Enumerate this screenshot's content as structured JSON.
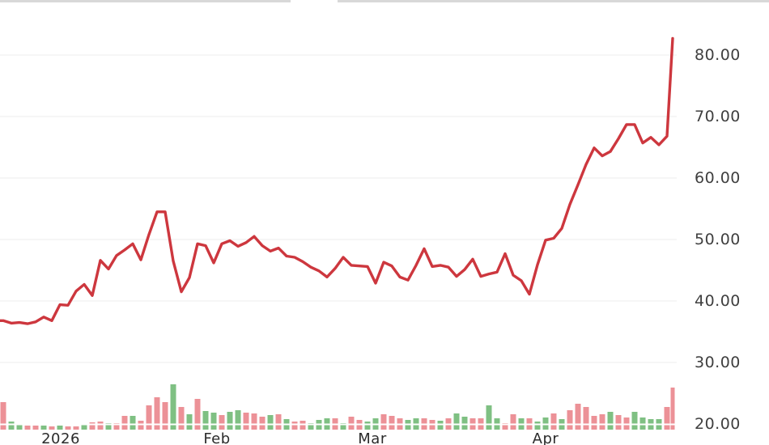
{
  "chart_data": {
    "type": "line",
    "subtype": "stock-price-with-volume",
    "title": "",
    "legend": "none",
    "grid": "horizontal-only",
    "y_axis": {
      "side": "right",
      "tick_labels": [
        "80.00",
        "70.00",
        "60.00",
        "50.00",
        "40.00",
        "30.00",
        "20.00"
      ],
      "tick_values": [
        80,
        70,
        60,
        50,
        40,
        30,
        20
      ],
      "range": [
        20,
        85
      ]
    },
    "x_axis": {
      "tick_labels": [
        "2026",
        "Feb",
        "Mar",
        "Apr"
      ],
      "tick_label_0": "2026",
      "tick_label_1": "Feb",
      "tick_label_2": "Mar",
      "tick_label_3": "Apr"
    },
    "series": [
      {
        "name": "price",
        "values": [
          36.8,
          36.4,
          36.5,
          36.3,
          36.6,
          37.4,
          36.8,
          39.4,
          39.3,
          41.6,
          42.7,
          40.9,
          46.6,
          45.2,
          47.4,
          48.3,
          49.3,
          46.7,
          50.8,
          54.5,
          54.5,
          46.5,
          41.5,
          43.8,
          49.3,
          49.0,
          46.2,
          49.3,
          49.8,
          48.9,
          49.5,
          50.5,
          49.0,
          48.1,
          48.6,
          47.3,
          47.1,
          46.4,
          45.5,
          44.9,
          43.9,
          45.3,
          47.1,
          45.8,
          45.7,
          45.6,
          42.9,
          46.3,
          45.7,
          43.9,
          43.4,
          45.8,
          48.5,
          45.6,
          45.8,
          45.5,
          44.0,
          45.1,
          46.8,
          44.0,
          44.4,
          44.7,
          47.7,
          44.2,
          43.3,
          41.1,
          45.9,
          49.9,
          50.2,
          51.8,
          55.7,
          58.9,
          62.2,
          64.9,
          63.6,
          64.3,
          66.4,
          68.7,
          68.7,
          65.7,
          66.6,
          65.4,
          66.8,
          82.7
        ]
      },
      {
        "name": "volume_relative",
        "values": [
          34,
          10,
          6,
          5,
          5,
          5,
          4,
          5,
          4,
          4,
          6,
          9,
          10,
          8,
          8,
          17,
          17,
          11,
          30,
          40,
          34,
          56,
          28,
          19,
          38,
          23,
          21,
          18,
          22,
          24,
          21,
          20,
          16,
          18,
          19,
          13,
          10,
          11,
          8,
          12,
          14,
          14,
          8,
          16,
          12,
          10,
          14,
          19,
          17,
          14,
          12,
          14,
          14,
          12,
          11,
          14,
          20,
          16,
          14,
          14,
          30,
          14,
          8,
          19,
          14,
          14,
          10,
          15,
          20,
          13,
          24,
          32,
          28,
          17,
          19,
          22,
          18,
          15,
          22,
          15,
          13,
          13,
          28,
          52
        ],
        "directions": [
          "down",
          "up",
          "up",
          "down",
          "down",
          "up",
          "down",
          "up",
          "down",
          "down",
          "up",
          "down",
          "down",
          "up",
          "down",
          "down",
          "up",
          "down",
          "down",
          "down",
          "down",
          "up",
          "down",
          "up",
          "down",
          "up",
          "up",
          "down",
          "up",
          "up",
          "down",
          "down",
          "down",
          "up",
          "down",
          "up",
          "down",
          "down",
          "up",
          "up",
          "up",
          "down",
          "up",
          "down",
          "down",
          "up",
          "up",
          "down",
          "down",
          "down",
          "up",
          "up",
          "down",
          "down",
          "up",
          "down",
          "up",
          "up",
          "down",
          "down",
          "up",
          "up",
          "down",
          "down",
          "up",
          "down",
          "up",
          "up",
          "down",
          "up",
          "down",
          "down",
          "down",
          "down",
          "down",
          "up",
          "down",
          "down",
          "up",
          "up",
          "up",
          "up",
          "down",
          "down"
        ]
      }
    ],
    "colors": {
      "price_line": "#cd373e",
      "volume_up": "#7fc083",
      "volume_down": "#ec9197",
      "gridline": "#ededed",
      "y_label_text": "#3f3f3f",
      "x_label_text": "#2b2b2b",
      "top_border": "#d8d8d8",
      "background": "#ffffff"
    }
  }
}
